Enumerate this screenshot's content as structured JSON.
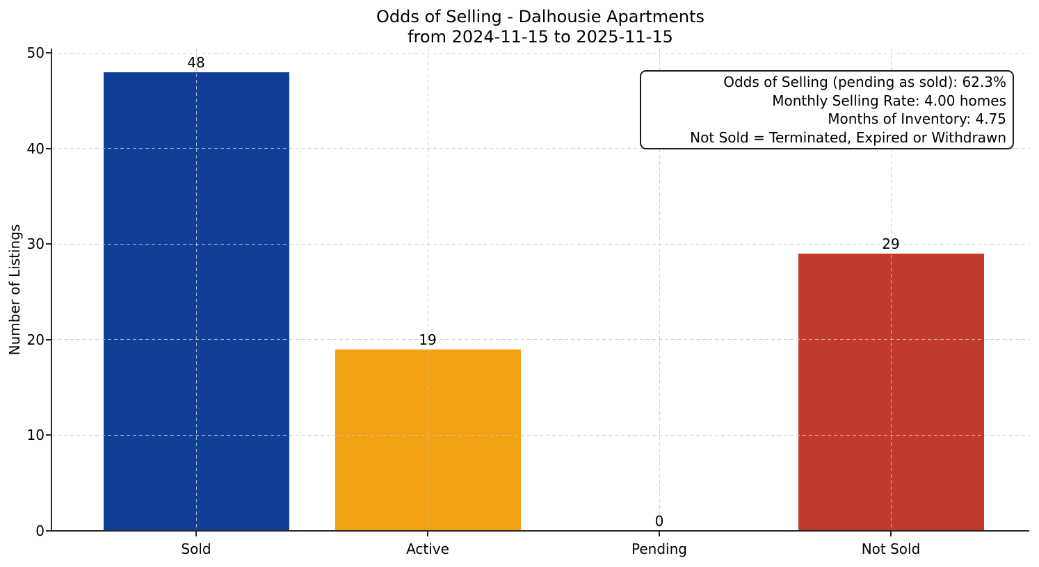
{
  "chart_data": {
    "type": "bar",
    "title": "Odds of Selling - Dalhousie Apartments",
    "subtitle": "from 2024-11-15 to 2025-11-15",
    "categories": [
      "Sold",
      "Active",
      "Pending",
      "Not Sold"
    ],
    "values": [
      48,
      19,
      0,
      29
    ],
    "bar_colors": [
      "#113F98",
      "#F2A112",
      null,
      "#C23A2C"
    ],
    "value_labels": [
      "48",
      "19",
      "0",
      "29"
    ],
    "xlabel": "",
    "ylabel": "Number of Listings",
    "yticks": [
      0,
      10,
      20,
      30,
      40,
      50
    ],
    "ylim": [
      0,
      50.4
    ],
    "grid": true,
    "grid_style": "dashed",
    "legend": null,
    "annotation": {
      "lines": [
        "Odds of Selling (pending as sold): 62.3%",
        "Monthly Selling Rate: 4.00 homes",
        "Months of Inventory: 4.75",
        "Not Sold = Terminated, Expired or Withdrawn"
      ]
    },
    "stats": {
      "odds_of_selling_pending_as_sold_pct": 62.3,
      "monthly_selling_rate_homes": 4.0,
      "months_of_inventory": 4.75
    },
    "colors": {
      "background": "#ffffff",
      "axis": "#262626",
      "grid": "#c6c6c6",
      "text": "#000000",
      "sold_bar": "#113F98",
      "active_bar": "#F2A112",
      "not_sold_bar": "#C23A2C"
    }
  }
}
